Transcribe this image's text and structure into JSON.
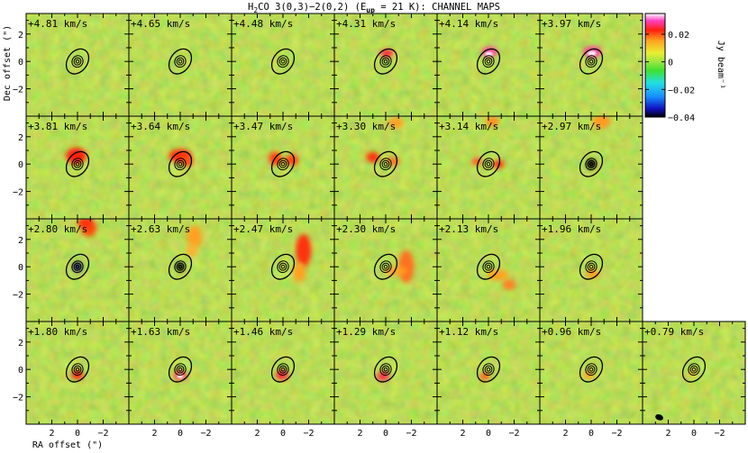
{
  "figure": {
    "title_prefix": "H",
    "title_sub": "2",
    "title_mid": "CO 3(0,3)−2(0,2) (E",
    "title_sub2": "up",
    "title_suffix": " = 21 K): CHANNEL MAPS",
    "xlabel": "RA offset (\")",
    "ylabel": "Dec offset (\")",
    "colorbar_label": "Jy beam⁻¹"
  },
  "chart_data": {
    "type": "heatmap",
    "title": "H2CO 3(0,3)−2(0,2) (Eup = 21 K): CHANNEL MAPS",
    "xlabel": "RA offset (\")",
    "ylabel": "Dec offset (\")",
    "xlim": [
      4,
      -4
    ],
    "ylim": [
      -4,
      3.5
    ],
    "x_ticks": [
      2,
      0,
      -2
    ],
    "x_tick_labels": [
      "2",
      "0",
      "−2"
    ],
    "y_ticks": [
      2,
      0,
      -2
    ],
    "y_tick_labels": [
      "2",
      "0",
      "−2"
    ],
    "colorbar": {
      "range": [
        -0.04,
        0.035
      ],
      "ticks": [
        0.02,
        0,
        -0.02,
        -0.04
      ],
      "tick_labels": [
        "0.02",
        "0",
        "−0.02",
        "−0.04"
      ],
      "label": "Jy beam⁻¹",
      "colormap": [
        "#000000",
        "#1010c0",
        "#1890ff",
        "#20e0e0",
        "#40e030",
        "#9ae640",
        "#e8ee30",
        "#ffa020",
        "#ff2010",
        "#ff40c0",
        "#ffffff"
      ]
    },
    "channels": [
      {
        "label": "+4.81 km/s",
        "velocity": 4.81
      },
      {
        "label": "+4.65 km/s",
        "velocity": 4.65
      },
      {
        "label": "+4.48 km/s",
        "velocity": 4.48
      },
      {
        "label": "+4.31 km/s",
        "velocity": 4.31
      },
      {
        "label": "+4.14 km/s",
        "velocity": 4.14
      },
      {
        "label": "+3.97 km/s",
        "velocity": 3.97
      },
      {
        "label": "+3.81 km/s",
        "velocity": 3.81
      },
      {
        "label": "+3.64 km/s",
        "velocity": 3.64
      },
      {
        "label": "+3.47 km/s",
        "velocity": 3.47
      },
      {
        "label": "+3.30 km/s",
        "velocity": 3.3
      },
      {
        "label": "+3.14 km/s",
        "velocity": 3.14
      },
      {
        "label": "+2.97 km/s",
        "velocity": 2.97
      },
      {
        "label": "+2.80 km/s",
        "velocity": 2.8
      },
      {
        "label": "+2.63 km/s",
        "velocity": 2.63
      },
      {
        "label": "+2.47 km/s",
        "velocity": 2.47
      },
      {
        "label": "+2.30 km/s",
        "velocity": 2.3
      },
      {
        "label": "+2.13 km/s",
        "velocity": 2.13
      },
      {
        "label": "+1.96 km/s",
        "velocity": 1.96
      },
      {
        "label": "+1.80 km/s",
        "velocity": 1.8
      },
      {
        "label": "+1.63 km/s",
        "velocity": 1.63
      },
      {
        "label": "+1.46 km/s",
        "velocity": 1.46
      },
      {
        "label": "+1.29 km/s",
        "velocity": 1.29
      },
      {
        "label": "+1.12 km/s",
        "velocity": 1.12
      },
      {
        "label": "+0.96 km/s",
        "velocity": 0.96
      },
      {
        "label": "+0.79 km/s",
        "velocity": 0.79
      }
    ]
  }
}
